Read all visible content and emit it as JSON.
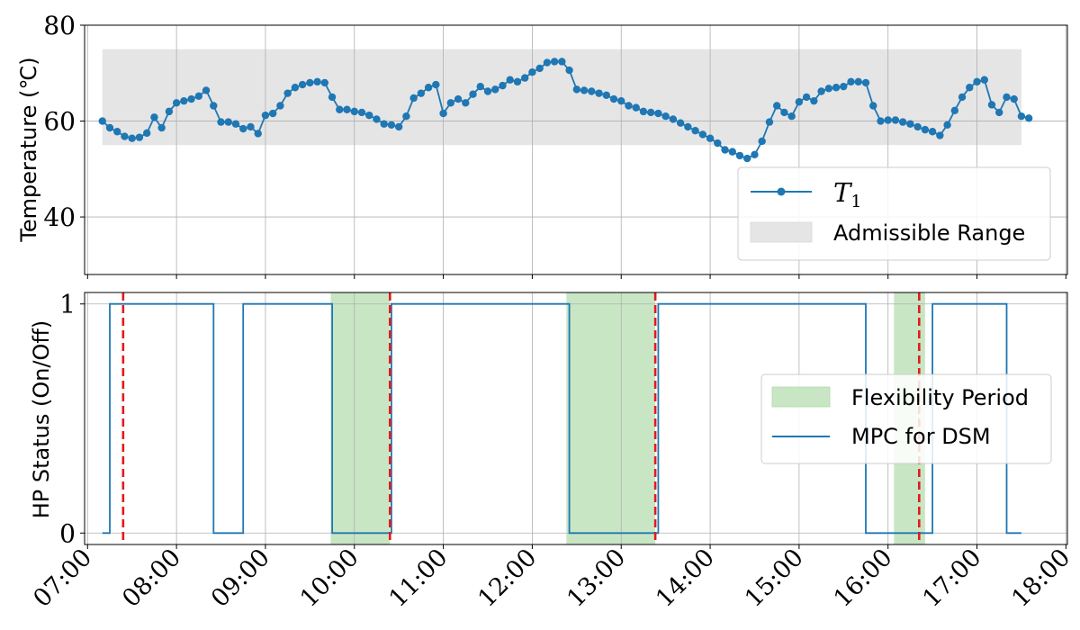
{
  "chart_data": [
    {
      "type": "line",
      "ylabel": "Temperature (℃)",
      "ylim": [
        28,
        80
      ],
      "yticks": [
        40,
        60,
        80
      ],
      "xlim": [
        "06:58",
        "18:01"
      ],
      "xticks": [
        "07:00",
        "08:00",
        "09:00",
        "10:00",
        "11:00",
        "12:00",
        "13:00",
        "14:00",
        "15:00",
        "16:00",
        "17:00",
        "18:00"
      ],
      "grid": true,
      "legend_position": "lower-right",
      "admissible_range": {
        "label": "Admissible Range",
        "low": 55,
        "high": 75,
        "start": "07:10",
        "end": "17:30",
        "color": "#e5e5e5"
      },
      "series": [
        {
          "name": "T₁",
          "color": "#1f77b4",
          "points": [
            [
              "07:10",
              60.0
            ],
            [
              "07:15",
              58.6
            ],
            [
              "07:20",
              57.8
            ],
            [
              "07:25",
              56.8
            ],
            [
              "07:30",
              56.4
            ],
            [
              "07:35",
              56.6
            ],
            [
              "07:40",
              57.5
            ],
            [
              "07:45",
              60.8
            ],
            [
              "07:50",
              58.6
            ],
            [
              "07:55",
              62.0
            ],
            [
              "08:00",
              63.8
            ],
            [
              "08:05",
              64.2
            ],
            [
              "08:10",
              64.6
            ],
            [
              "08:15",
              65.2
            ],
            [
              "08:20",
              66.4
            ],
            [
              "08:25",
              63.2
            ],
            [
              "08:30",
              59.8
            ],
            [
              "08:35",
              59.8
            ],
            [
              "08:40",
              59.4
            ],
            [
              "08:45",
              58.4
            ],
            [
              "08:50",
              58.8
            ],
            [
              "08:55",
              57.4
            ],
            [
              "09:00",
              61.2
            ],
            [
              "09:05",
              61.6
            ],
            [
              "09:10",
              63.2
            ],
            [
              "09:15",
              65.8
            ],
            [
              "09:20",
              67.0
            ],
            [
              "09:25",
              67.6
            ],
            [
              "09:30",
              68.0
            ],
            [
              "09:35",
              68.2
            ],
            [
              "09:40",
              68.0
            ],
            [
              "09:45",
              65.0
            ],
            [
              "09:50",
              62.4
            ],
            [
              "09:55",
              62.4
            ],
            [
              "10:00",
              62.0
            ],
            [
              "10:05",
              61.8
            ],
            [
              "10:10",
              61.2
            ],
            [
              "10:15",
              60.4
            ],
            [
              "10:20",
              59.4
            ],
            [
              "10:25",
              59.2
            ],
            [
              "10:30",
              58.8
            ],
            [
              "10:35",
              61.0
            ],
            [
              "10:40",
              64.8
            ],
            [
              "10:45",
              65.8
            ],
            [
              "10:50",
              67.0
            ],
            [
              "10:55",
              67.6
            ],
            [
              "11:00",
              61.6
            ],
            [
              "11:05",
              63.8
            ],
            [
              "11:10",
              64.6
            ],
            [
              "11:15",
              63.8
            ],
            [
              "11:20",
              65.6
            ],
            [
              "11:25",
              67.2
            ],
            [
              "11:30",
              66.2
            ],
            [
              "11:35",
              66.6
            ],
            [
              "11:40",
              67.4
            ],
            [
              "11:45",
              68.6
            ],
            [
              "11:50",
              68.2
            ],
            [
              "11:55",
              69.0
            ],
            [
              "12:00",
              70.2
            ],
            [
              "12:05",
              71.0
            ],
            [
              "12:10",
              72.2
            ],
            [
              "12:15",
              72.4
            ],
            [
              "12:20",
              72.4
            ],
            [
              "12:25",
              70.6
            ],
            [
              "12:30",
              66.6
            ],
            [
              "12:35",
              66.4
            ],
            [
              "12:40",
              66.2
            ],
            [
              "12:45",
              65.8
            ],
            [
              "12:50",
              65.4
            ],
            [
              "12:55",
              64.6
            ],
            [
              "13:00",
              64.2
            ],
            [
              "13:05",
              63.2
            ],
            [
              "13:10",
              62.8
            ],
            [
              "13:15",
              62.0
            ],
            [
              "13:20",
              61.8
            ],
            [
              "13:25",
              61.6
            ],
            [
              "13:30",
              61.0
            ],
            [
              "13:35",
              60.4
            ],
            [
              "13:40",
              59.6
            ],
            [
              "13:45",
              58.8
            ],
            [
              "13:50",
              58.0
            ],
            [
              "13:55",
              57.2
            ],
            [
              "14:00",
              56.4
            ],
            [
              "14:05",
              55.4
            ],
            [
              "14:10",
              54.0
            ],
            [
              "14:15",
              53.6
            ],
            [
              "14:20",
              52.8
            ],
            [
              "14:25",
              52.2
            ],
            [
              "14:30",
              53.0
            ],
            [
              "14:35",
              55.8
            ],
            [
              "14:40",
              59.8
            ],
            [
              "14:45",
              63.2
            ],
            [
              "14:50",
              61.8
            ],
            [
              "14:55",
              61.0
            ],
            [
              "15:00",
              64.0
            ],
            [
              "15:05",
              65.0
            ],
            [
              "15:10",
              64.2
            ],
            [
              "15:15",
              66.2
            ],
            [
              "15:20",
              66.8
            ],
            [
              "15:25",
              67.0
            ],
            [
              "15:30",
              67.2
            ],
            [
              "15:35",
              68.2
            ],
            [
              "15:40",
              68.2
            ],
            [
              "15:45",
              68.0
            ],
            [
              "15:50",
              63.2
            ],
            [
              "15:55",
              60.0
            ],
            [
              "16:00",
              60.2
            ],
            [
              "16:05",
              60.2
            ],
            [
              "16:10",
              59.8
            ],
            [
              "16:15",
              59.4
            ],
            [
              "16:20",
              58.8
            ],
            [
              "16:25",
              58.2
            ],
            [
              "16:30",
              57.8
            ],
            [
              "16:35",
              57.0
            ],
            [
              "16:40",
              59.2
            ],
            [
              "16:45",
              62.2
            ],
            [
              "16:50",
              65.0
            ],
            [
              "16:55",
              67.0
            ],
            [
              "17:00",
              68.2
            ],
            [
              "17:05",
              68.6
            ],
            [
              "17:10",
              63.4
            ],
            [
              "17:15",
              61.8
            ],
            [
              "17:20",
              65.0
            ],
            [
              "17:25",
              64.6
            ],
            [
              "17:30",
              61.0
            ],
            [
              "17:35",
              60.6
            ]
          ]
        }
      ],
      "legend": [
        "T₁",
        "Admissible Range"
      ]
    },
    {
      "type": "line",
      "ylabel": "HP Status (On/Off)",
      "ylim": [
        -0.05,
        1.05
      ],
      "yticks": [
        0,
        1
      ],
      "xlim": [
        "06:58",
        "18:01"
      ],
      "xticks": [
        "07:00",
        "08:00",
        "09:00",
        "10:00",
        "11:00",
        "12:00",
        "13:00",
        "14:00",
        "15:00",
        "16:00",
        "17:00",
        "18:00"
      ],
      "grid": true,
      "legend_position": "center-right",
      "series": [
        {
          "name": "MPC for DSM",
          "color": "#1f77b4",
          "step_points": [
            [
              "07:10",
              0
            ],
            [
              "07:15",
              1
            ],
            [
              "08:25",
              0
            ],
            [
              "08:45",
              1
            ],
            [
              "09:45",
              0
            ],
            [
              "10:25",
              1
            ],
            [
              "12:25",
              0
            ],
            [
              "13:25",
              1
            ],
            [
              "15:45",
              0
            ],
            [
              "16:30",
              1
            ],
            [
              "17:20",
              0
            ],
            [
              "17:30",
              0
            ]
          ]
        }
      ],
      "flexibility_periods": [
        [
          "09:44",
          "10:24"
        ],
        [
          "12:23",
          "13:23"
        ],
        [
          "16:04",
          "16:25"
        ]
      ],
      "flexibility_color": "#c8e6c4",
      "red_dashed_lines": [
        "07:24",
        "10:24",
        "13:23",
        "16:21"
      ],
      "red_color": "#e31a1c",
      "legend": [
        "Flexibility Period",
        "MPC for DSM"
      ]
    }
  ],
  "legend_top": {
    "t1_label": "T",
    "t1_sub": "1",
    "range_label": "Admissible Range"
  },
  "legend_bottom": {
    "flex_label": "Flexibility Period",
    "mpc_label": "MPC for DSM"
  }
}
